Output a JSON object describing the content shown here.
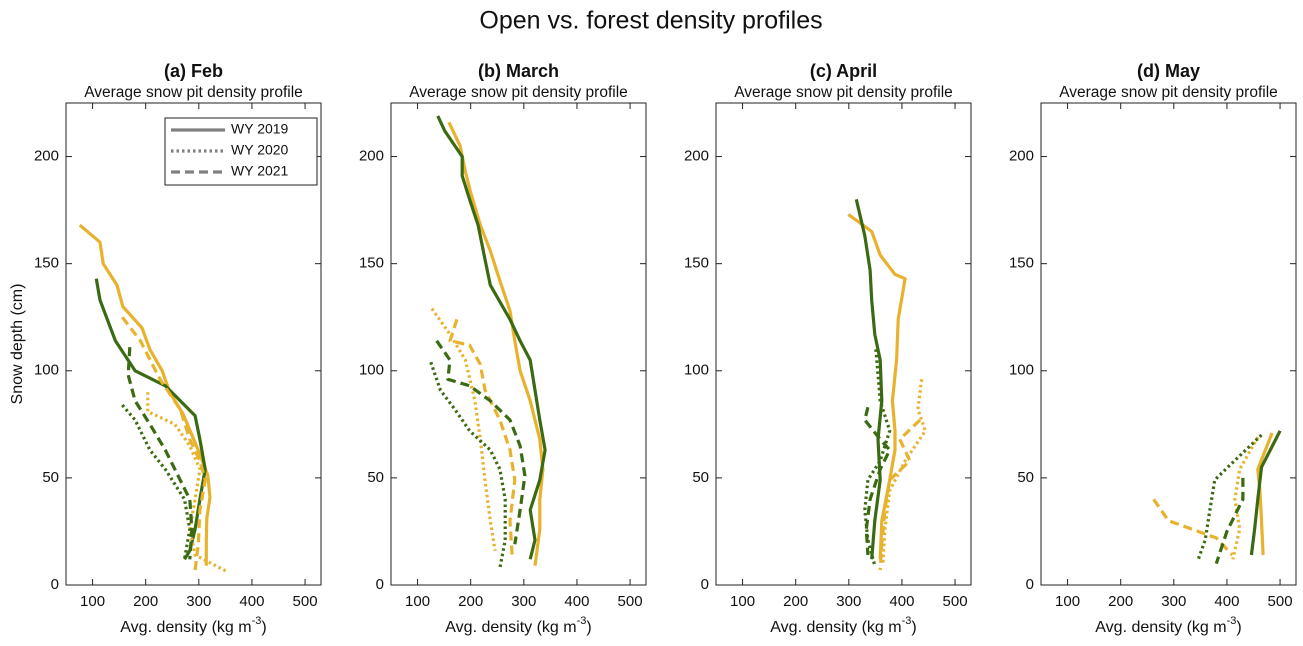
{
  "title": "Open vs. forest density profiles",
  "chart_data": [
    {
      "type": "line",
      "title": "(a) Feb",
      "subtitle": "Average snow pit density profile",
      "xlabel": {
        "text": "Avg. density (kg m",
        "superscript": "-3",
        "suffix": ")"
      },
      "ylabel": "Snow depth (cm)",
      "xlim": [
        50,
        530
      ],
      "ylim": [
        0,
        225
      ],
      "xticks": [
        100,
        200,
        300,
        400,
        500
      ],
      "yticks": [
        0,
        50,
        100,
        150,
        200
      ],
      "legend": {
        "loc": "upper right",
        "entries": [
          {
            "label": "WY 2019",
            "dash": "solid",
            "color": "#808080"
          },
          {
            "label": "WY 2020",
            "dash": "dotted",
            "color": "#808080"
          },
          {
            "label": "WY 2021",
            "dash": "dashed",
            "color": "#808080"
          }
        ]
      },
      "series": [
        {
          "color": "#e8b22e",
          "dash": "solid",
          "x": [
            76,
            114,
            120,
            146,
            157,
            193,
            208,
            231,
            245,
            270,
            287,
            302,
            317,
            321,
            315,
            314,
            314
          ],
          "values": [
            168,
            160,
            150,
            140,
            130,
            120,
            110,
            100,
            90,
            80,
            70,
            61,
            51,
            41,
            31,
            21,
            9
          ]
        },
        {
          "color": "#3a6b12",
          "dash": "solid",
          "x": [
            107,
            114,
            143,
            180,
            237,
            293,
            302,
            312,
            302,
            293,
            283,
            273
          ],
          "values": [
            143,
            133,
            114,
            100,
            93,
            79,
            68,
            54,
            40,
            26,
            16,
            12
          ]
        },
        {
          "color": "#e8b22e",
          "dash": "dotted",
          "x": [
            204,
            204,
            255,
            283,
            302,
            293,
            283,
            293,
            355
          ],
          "values": [
            90,
            81,
            75,
            65,
            54,
            40,
            26,
            14,
            6
          ]
        },
        {
          "color": "#3a6b12",
          "dash": "dotted",
          "x": [
            156,
            180,
            208,
            237,
            273,
            283,
            273
          ],
          "values": [
            84,
            77,
            63,
            54,
            40,
            26,
            12
          ]
        },
        {
          "color": "#e8b22e",
          "dash": "dashed",
          "x": [
            156,
            190,
            227,
            265,
            283,
            302,
            312,
            302,
            299,
            293
          ],
          "values": [
            125,
            114,
            96,
            82,
            68,
            58,
            49,
            35,
            19,
            7
          ]
        },
        {
          "color": "#3a6b12",
          "dash": "dashed",
          "x": [
            170,
            167,
            180,
            208,
            237,
            265,
            283,
            287,
            283
          ],
          "values": [
            111,
            98,
            86,
            75,
            63,
            49,
            40,
            26,
            12
          ]
        }
      ]
    },
    {
      "type": "line",
      "title": "(b) March",
      "subtitle": "Average snow pit density profile",
      "xlabel": {
        "text": "Avg. density (kg m",
        "superscript": "-3",
        "suffix": ")"
      },
      "xlim": [
        50,
        530
      ],
      "ylim": [
        0,
        225
      ],
      "xticks": [
        100,
        200,
        300,
        400,
        500
      ],
      "yticks": [
        0,
        50,
        100,
        150,
        200
      ],
      "series": [
        {
          "color": "#e8b22e",
          "dash": "solid",
          "x": [
            159,
            180,
            190,
            199,
            218,
            237,
            255,
            274,
            283,
            293,
            312,
            321,
            330,
            336,
            330,
            330,
            321
          ],
          "values": [
            216,
            205,
            193,
            184,
            168,
            156,
            142,
            128,
            114,
            100,
            86,
            77,
            68,
            54,
            40,
            26,
            9
          ]
        },
        {
          "color": "#3a6b12",
          "dash": "solid",
          "x": [
            138,
            151,
            184,
            184,
            198,
            214,
            227,
            237,
            274,
            293,
            312,
            321,
            330,
            340,
            330,
            312,
            321,
            312
          ],
          "values": [
            219,
            212,
            200,
            191,
            180,
            168,
            152,
            140,
            124,
            114,
            105,
            91,
            77,
            63,
            49,
            35,
            21,
            12
          ]
        },
        {
          "color": "#e8b22e",
          "dash": "dotted",
          "x": [
            127,
            161,
            190,
            208,
            218,
            227,
            237,
            246
          ],
          "values": [
            129,
            117,
            105,
            86,
            68,
            49,
            30,
            16
          ]
        },
        {
          "color": "#3a6b12",
          "dash": "dotted",
          "x": [
            125,
            143,
            170,
            198,
            237,
            255,
            265,
            265,
            255
          ],
          "values": [
            104,
            91,
            82,
            72,
            63,
            54,
            40,
            21,
            8
          ]
        },
        {
          "color": "#e8b22e",
          "dash": "dashed",
          "x": [
            174,
            161,
            198,
            218,
            227,
            255,
            274,
            283,
            274,
            278
          ],
          "values": [
            124,
            114,
            112,
            103,
            91,
            77,
            63,
            49,
            30,
            14
          ]
        },
        {
          "color": "#3a6b12",
          "dash": "dashed",
          "x": [
            136,
            161,
            157,
            198,
            237,
            274,
            293,
            302,
            293,
            283
          ],
          "values": [
            114,
            105,
            96,
            93,
            86,
            77,
            65,
            51,
            35,
            19
          ]
        }
      ]
    },
    {
      "type": "line",
      "title": "(c) April",
      "subtitle": "Average snow pit density profile",
      "xlabel": {
        "text": "Avg. density (kg m",
        "superscript": "-3",
        "suffix": ")"
      },
      "xlim": [
        50,
        530
      ],
      "ylim": [
        0,
        225
      ],
      "xticks": [
        100,
        200,
        300,
        400,
        500
      ],
      "yticks": [
        0,
        50,
        100,
        150,
        200
      ],
      "series": [
        {
          "color": "#e8b22e",
          "dash": "solid",
          "x": [
            299,
            343,
            359,
            387,
            406,
            393,
            390,
            382,
            387,
            387,
            377,
            362,
            359
          ],
          "values": [
            173,
            165,
            154,
            145,
            143,
            124,
            105,
            86,
            72,
            63,
            49,
            30,
            12
          ]
        },
        {
          "color": "#3a6b12",
          "dash": "solid",
          "x": [
            314,
            330,
            340,
            343,
            349,
            359,
            362,
            355,
            359,
            349,
            343
          ],
          "values": [
            180,
            163,
            147,
            133,
            117,
            105,
            86,
            68,
            49,
            30,
            12
          ]
        },
        {
          "color": "#e8b22e",
          "dash": "dotted",
          "x": [
            437,
            430,
            444,
            406,
            377,
            368,
            364
          ],
          "values": [
            96,
            82,
            72,
            58,
            44,
            26,
            9
          ]
        },
        {
          "color": "#3a6b12",
          "dash": "dotted",
          "x": [
            351,
            359,
            377,
            359,
            336,
            330,
            336,
            349
          ],
          "values": [
            110,
            86,
            72,
            58,
            49,
            35,
            21,
            9
          ]
        },
        {
          "color": "#e8b22e",
          "dash": "dashed",
          "x": [
            434,
            396,
            415,
            377,
            368,
            362,
            359
          ],
          "values": [
            77,
            68,
            58,
            49,
            35,
            19,
            7
          ]
        },
        {
          "color": "#3a6b12",
          "dash": "dashed",
          "x": [
            336,
            330,
            359,
            377,
            359,
            340,
            333,
            336
          ],
          "values": [
            83,
            77,
            68,
            63,
            54,
            40,
            26,
            14
          ]
        }
      ]
    },
    {
      "type": "line",
      "title": "(d) May",
      "subtitle": "Average snow pit density profile",
      "xlabel": {
        "text": "Avg. density (kg m",
        "superscript": "-3",
        "suffix": ")"
      },
      "xlim": [
        50,
        530
      ],
      "ylim": [
        0,
        225
      ],
      "xticks": [
        100,
        200,
        300,
        400,
        500
      ],
      "yticks": [
        0,
        50,
        100,
        150,
        200
      ],
      "series": [
        {
          "color": "#e8b22e",
          "dash": "solid",
          "x": [
            485,
            458,
            462,
            465,
            468
          ],
          "values": [
            71,
            54,
            44,
            30,
            14
          ]
        },
        {
          "color": "#3a6b12",
          "dash": "solid",
          "x": [
            500,
            465,
            458,
            452,
            446
          ],
          "values": [
            72,
            55,
            40,
            26,
            14
          ]
        },
        {
          "color": "#e8b22e",
          "dash": "dotted",
          "x": [
            458,
            424,
            415,
            424,
            411
          ],
          "values": [
            69,
            54,
            40,
            26,
            12
          ]
        },
        {
          "color": "#3a6b12",
          "dash": "dotted",
          "x": [
            465,
            406,
            377,
            368,
            359,
            346
          ],
          "values": [
            70,
            56,
            49,
            35,
            21,
            12
          ]
        },
        {
          "color": "#e8b22e",
          "dash": "dashed",
          "x": [
            262,
            290,
            380,
            410
          ],
          "values": [
            40,
            30,
            22,
            14
          ]
        },
        {
          "color": "#3a6b12",
          "dash": "dashed",
          "x": [
            430,
            430,
            400,
            380
          ],
          "values": [
            50,
            40,
            25,
            10
          ]
        }
      ]
    }
  ]
}
